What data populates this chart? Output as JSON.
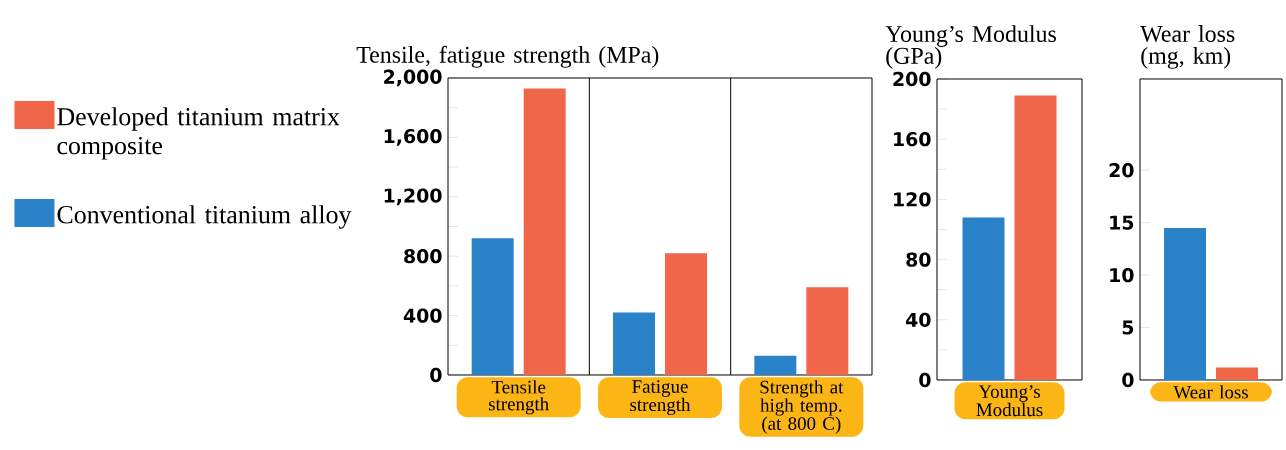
{
  "chart_data": [
    {
      "type": "bar",
      "title": "Tensile, fatigue strength (MPa)",
      "categories": [
        "Tensile strength",
        "Fatigue strength",
        "Strength at high temp. (at 800 C)"
      ],
      "series": [
        {
          "name": "Conventional titanium alloy",
          "color": "#2a82c8",
          "values": [
            920,
            420,
            130
          ]
        },
        {
          "name": "Developed titanium matrix composite",
          "color": "#ef6649",
          "values": [
            1930,
            820,
            590
          ]
        }
      ],
      "ylim": [
        0,
        2000
      ],
      "yticks": [
        0,
        {
          "value": 200,
          "label": null
        },
        400,
        {
          "value": 600,
          "label": null
        },
        800,
        {
          "value": 1000,
          "label": null
        },
        {
          "value": 1200,
          "label": "1,200"
        },
        {
          "value": 1400,
          "label": null
        },
        {
          "value": 1600,
          "label": "1,600"
        },
        {
          "value": 1800,
          "label": null
        },
        {
          "value": 2000,
          "label": "2,000"
        }
      ],
      "legend": "left"
    },
    {
      "type": "bar",
      "title": "Young’s Modulus (GPa)",
      "categories": [
        "Young’s Modulus"
      ],
      "series": [
        {
          "color": "#2a82c8",
          "values": [
            108
          ]
        },
        {
          "color": "#ef6649",
          "values": [
            189
          ]
        }
      ],
      "ylim": [
        0,
        200
      ],
      "yticks": [
        0,
        {
          "value": 20,
          "label": null
        },
        40,
        {
          "value": 60,
          "label": null
        },
        80,
        {
          "value": 100,
          "label": null
        },
        120,
        {
          "value": 140,
          "label": null
        },
        160,
        {
          "value": 180,
          "label": null
        },
        200
      ]
    },
    {
      "type": "bar",
      "title": "Wear loss (mg, km)",
      "categories": [
        "Wear loss"
      ],
      "series": [
        {
          "color": "#2a82c8",
          "values": [
            14.5
          ]
        },
        {
          "color": "#ef6649",
          "values": [
            1.2
          ]
        }
      ],
      "ylim": [
        0,
        28.7
      ],
      "yticks": [
        0,
        5,
        10,
        15,
        20
      ]
    }
  ]
}
